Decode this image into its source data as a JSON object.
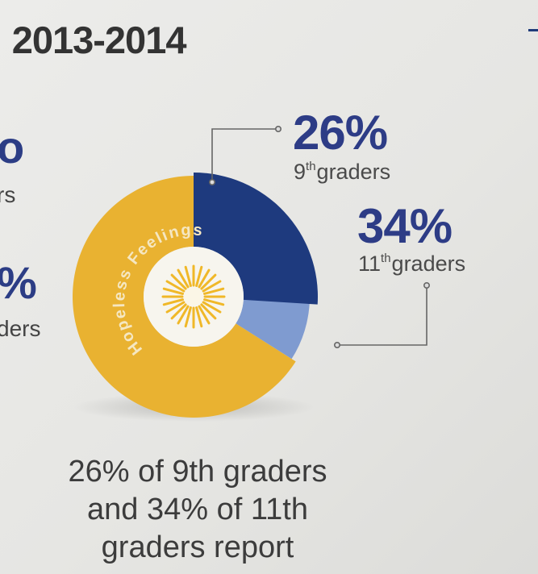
{
  "header": {
    "title_fragment": ": 2013-2014"
  },
  "left_fragments": [
    {
      "value": "o",
      "label": "rs"
    },
    {
      "value": "%",
      "label": "ders"
    }
  ],
  "colors": {
    "ninth": "#1e3a7e",
    "eleventh": "#7f9bd0",
    "rest": "#e9b231",
    "inner_text": "#f5e7c2",
    "sunburst": "#f0b828"
  },
  "chart_data": {
    "type": "pie",
    "inner_label": "Hopeless Feelings",
    "slices": [
      {
        "label": "9th graders",
        "value": 26
      },
      {
        "label": "11th graders",
        "value": 34
      }
    ],
    "callouts": [
      {
        "pct": "26%",
        "ord_num": "9",
        "ord_sup": "th",
        "word": "graders"
      },
      {
        "pct": "34%",
        "ord_num": "11",
        "ord_sup": "th",
        "word": "graders"
      }
    ]
  },
  "caption": {
    "line1": "26% of 9th graders",
    "line2": "and 34% of 11th",
    "line3": "graders report"
  }
}
